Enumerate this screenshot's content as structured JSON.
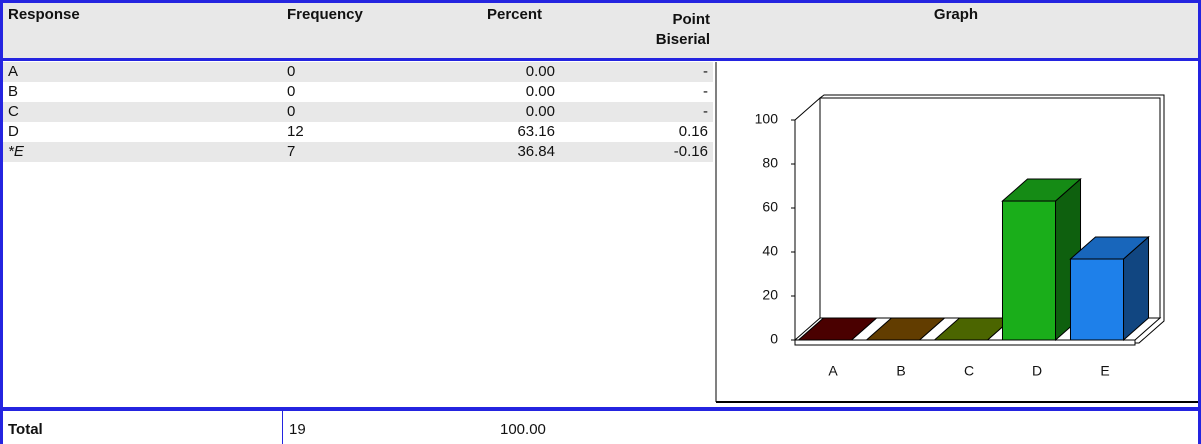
{
  "table": {
    "columns": [
      "Response",
      "Frequency",
      "Percent",
      "Point Biserial"
    ],
    "rows": [
      [
        "A",
        "0",
        "0.00",
        "-"
      ],
      [
        "B",
        "0",
        "0.00",
        "-"
      ],
      [
        "C",
        "0",
        "0.00",
        "-"
      ],
      [
        "D",
        "12",
        "63.16",
        "0.16"
      ],
      [
        "*E",
        "7",
        "36.84",
        "-0.16"
      ]
    ],
    "total": [
      "Total",
      "19",
      "100.00"
    ]
  },
  "graph_title": "Graph",
  "chart_data": {
    "type": "bar3d",
    "categories": [
      "A",
      "B",
      "C",
      "D",
      "E"
    ],
    "values": [
      0,
      0,
      0,
      63.16,
      36.84
    ],
    "colors": [
      "#5c0000",
      "#7a4c00",
      "#5e7e00",
      "#1aae1a",
      "#1e80ea"
    ],
    "ylim": [
      0,
      100
    ],
    "yticks": [
      0,
      20,
      40,
      60,
      80,
      100
    ]
  }
}
